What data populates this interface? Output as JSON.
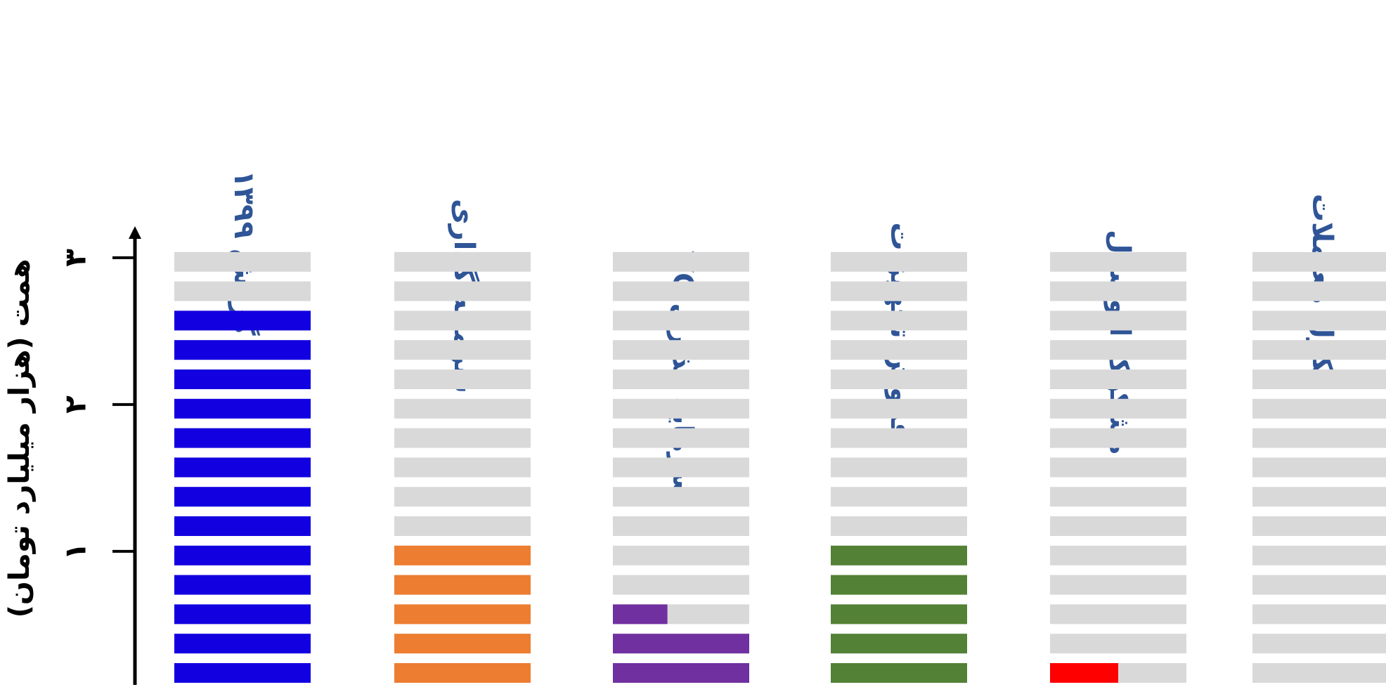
{
  "chart_data": {
    "type": "bar",
    "title": "",
    "ylabel": "همت (هزار میلیارد تومان)",
    "ylim": [
      0,
      3
    ],
    "yticks": [
      {
        "value": 1,
        "label": "۱"
      },
      {
        "value": 2,
        "label": "۲"
      },
      {
        "value": 3,
        "label": "۳"
      }
    ],
    "slot_count": 15,
    "slot_value": 0.2,
    "grid": false,
    "legend": "none",
    "colors": {
      "empty_slot": "#d9d9d9",
      "category_label": "#2f5597",
      "axis": "#000000"
    },
    "categories": [
      {
        "label": "گردش ۱۳۹۹",
        "value": 2.6,
        "color": "#1300e0"
      },
      {
        "label": "سرمایه گذاری",
        "value": 1.0,
        "color": "#ed7d31"
      },
      {
        "label": "سرمایه گذاری VC",
        "value": 0.48,
        "color": "#7030a0"
      },
      {
        "label": "فروش تجهیزات",
        "value": 1.0,
        "color": "#538135"
      },
      {
        "label": "مشکوک الوصول",
        "value": 0.1,
        "color": "#ff0000"
      },
      {
        "label": "نکول معاملات",
        "value": 0,
        "color": "#d9d9d9"
      }
    ]
  }
}
